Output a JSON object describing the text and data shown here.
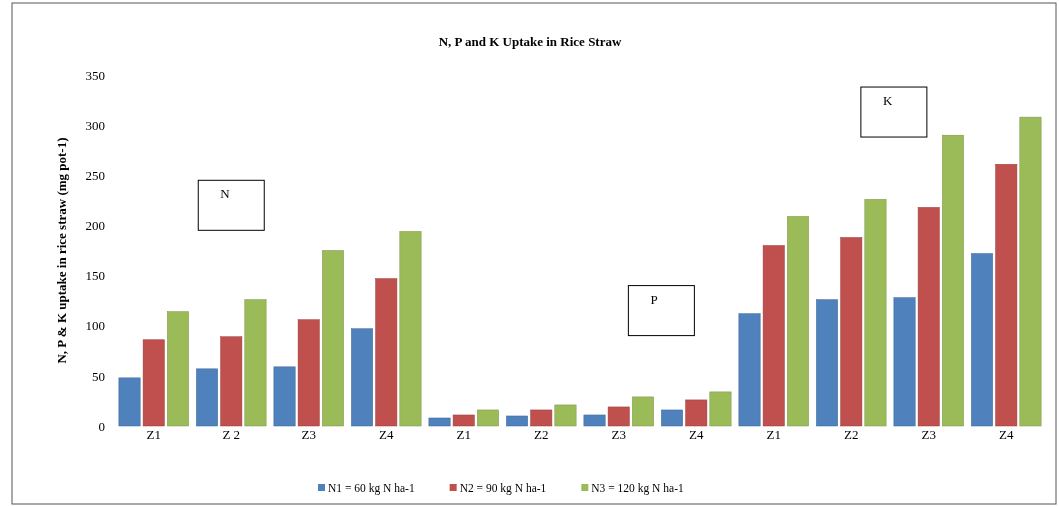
{
  "chart_data": {
    "type": "bar",
    "title": "N, P and K Uptake in Rice Straw",
    "ylabel": "N, P & K uptake in rice straw (mg pot-1)",
    "categories": [
      "Z1",
      "Z 2",
      "Z3",
      "Z4",
      "Z1",
      "Z2",
      "Z3",
      "Z4",
      "Z1",
      "Z2",
      "Z3",
      "Z4"
    ],
    "series": [
      {
        "name": "N1 = 60 kg N ha-1",
        "color": "#4f81bd",
        "values": [
          48,
          57,
          59,
          97,
          8,
          10,
          11,
          16,
          112,
          126,
          128,
          172
        ]
      },
      {
        "name": "N2 = 90 kg N ha-1",
        "color": "#c0504d",
        "values": [
          86,
          89,
          106,
          147,
          11,
          16,
          19,
          26,
          180,
          188,
          218,
          261
        ]
      },
      {
        "name": "N3 = 120 kg N ha-1",
        "color": "#9bbb59",
        "values": [
          114,
          126,
          175,
          194,
          16,
          21,
          29,
          34,
          209,
          226,
          290,
          308
        ]
      }
    ],
    "ylim": [
      0,
      350
    ],
    "yticks": [
      0,
      50,
      100,
      150,
      200,
      250,
      300,
      350
    ],
    "grid": false,
    "legend": "bottom",
    "annotations": [
      "N",
      "P",
      "K"
    ]
  }
}
